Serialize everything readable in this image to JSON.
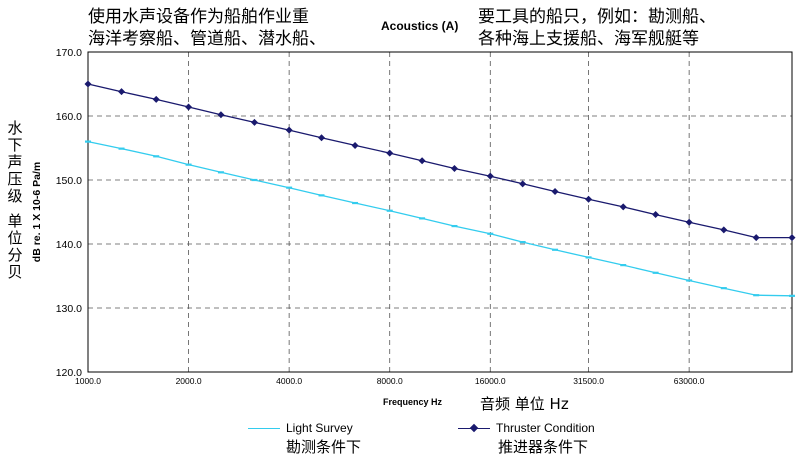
{
  "overlay": {
    "title_line1": "使用水声设备作为船舶作业重",
    "title_line2": "海洋考察船、管道船、潜水船、",
    "title_line3": "要工具的船只，例如：勘测船、",
    "title_line4": "各种海上支援船、海军舰艇等",
    "ylabel_zh": [
      "水",
      "下",
      "声",
      "压",
      "级",
      "",
      "单",
      "位",
      "分",
      "贝"
    ],
    "xlabel_zh": "音频 单位 Hz",
    "legend_zh_light": "勘测条件下",
    "legend_zh_thruster": "推进器条件下"
  },
  "chart_data": {
    "type": "line",
    "title": "Acoustics (A)",
    "xlabel": "Frequency Hz",
    "ylabel": "dB re. 1 X 10-6 Pa/m",
    "x_scale": "log2",
    "xlim": [
      1000,
      128000
    ],
    "ylim": [
      120,
      170
    ],
    "y_ticks": [
      "120.0",
      "130.0",
      "140.0",
      "150.0",
      "160.0",
      "170.0"
    ],
    "x_ticks": [
      {
        "value": 1000,
        "label": "1000.0"
      },
      {
        "value": 2000,
        "label": "2000.0"
      },
      {
        "value": 4000,
        "label": "4000.0"
      },
      {
        "value": 8000,
        "label": "8000.0"
      },
      {
        "value": 16000,
        "label": "16000.0"
      },
      {
        "value": 31500,
        "label": "31500.0"
      },
      {
        "value": 63000,
        "label": "63000.0"
      }
    ],
    "grid": true,
    "legend_position": "bottom",
    "series": [
      {
        "name": "Light Survey",
        "color": "#33ccee",
        "marker": "dash",
        "x": [
          1000,
          1260,
          1600,
          2000,
          2500,
          3150,
          4000,
          5000,
          6300,
          8000,
          10000,
          12500,
          16000,
          20000,
          25000,
          31500,
          40000,
          50000,
          63000,
          80000,
          100000,
          128000
        ],
        "y": [
          156.0,
          154.9,
          153.7,
          152.4,
          151.2,
          150.0,
          148.8,
          147.6,
          146.4,
          145.2,
          144.0,
          142.8,
          141.6,
          140.3,
          139.1,
          137.9,
          136.7,
          135.5,
          134.3,
          133.1,
          132.0,
          131.9
        ]
      },
      {
        "name": "Thruster Condition",
        "color": "#1a1a6e",
        "marker": "diamond",
        "x": [
          1000,
          1260,
          1600,
          2000,
          2500,
          3150,
          4000,
          5000,
          6300,
          8000,
          10000,
          12500,
          16000,
          20000,
          25000,
          31500,
          40000,
          50000,
          63000,
          80000,
          100000,
          128000
        ],
        "y": [
          165.0,
          163.8,
          162.6,
          161.4,
          160.2,
          159.0,
          157.8,
          156.6,
          155.4,
          154.2,
          153.0,
          151.8,
          150.6,
          149.4,
          148.2,
          147.0,
          145.8,
          144.6,
          143.4,
          142.2,
          141.0,
          141.0
        ]
      }
    ]
  }
}
